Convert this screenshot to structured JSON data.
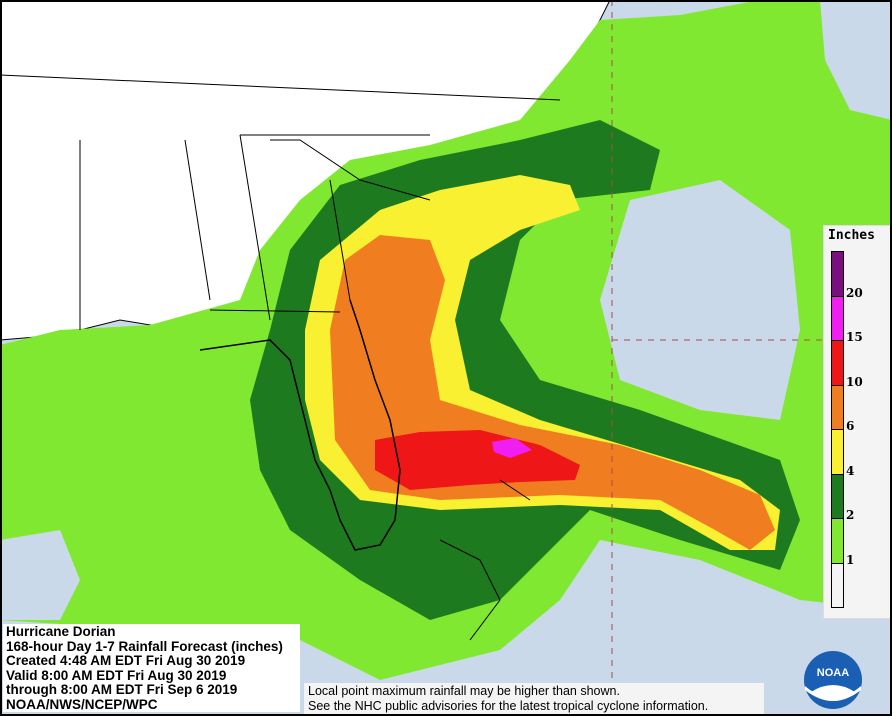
{
  "info": {
    "lines": [
      "Hurricane Dorian",
      "168-hour Day 1-7 Rainfall Forecast (inches)",
      "Created 4:48 AM EDT Fri Aug 30 2019",
      "Valid 8:00 AM EDT Fri Aug 30 2019",
      "through 8:00 AM EDT Fri Sep 6 2019",
      "NOAA/NWS/NCEP/WPC"
    ]
  },
  "note": {
    "lines": [
      "Local point maximum rainfall may be higher than shown.",
      "See the NHC public advisories for the latest tropical cyclone information."
    ]
  },
  "legend": {
    "title": "Inches",
    "levels": [
      {
        "label": "20",
        "color": "#7a0f7f"
      },
      {
        "label": "15",
        "color": "#f01ef0"
      },
      {
        "label": "10",
        "color": "#ee1616"
      },
      {
        "label": "6",
        "color": "#f07e20"
      },
      {
        "label": "4",
        "color": "#f8f030"
      },
      {
        "label": "2",
        "color": "#1e7a1e"
      },
      {
        "label": "1",
        "color": "#80e830"
      },
      {
        "label": "",
        "color": "#f4f4f4"
      }
    ]
  },
  "logo": {
    "text": "NOAA"
  },
  "colors": {
    "ocean": "#c9d9ea",
    "land": "#ffffff",
    "outer_land": "#dcdcdc"
  }
}
